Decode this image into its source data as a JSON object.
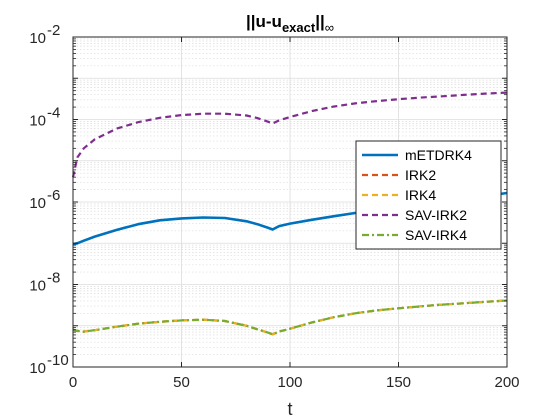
{
  "chart_data": {
    "type": "line",
    "title_parts": {
      "prefix": "||u-u",
      "subscript": "exact",
      "suffix": "||",
      "suffix_sub": "∞"
    },
    "xlabel": "t",
    "ylabel": "",
    "xlim": [
      0,
      200
    ],
    "ylim": [
      1e-10,
      0.01
    ],
    "yscale": "log",
    "grid": true,
    "minor_grid": true,
    "legend_position": "right",
    "x_ticks": [
      0,
      50,
      100,
      150,
      200
    ],
    "x_tick_labels": [
      "0",
      "50",
      "100",
      "150",
      "200"
    ],
    "y_tick_mantissa": [
      "10",
      "10",
      "10",
      "10",
      "10"
    ],
    "y_tick_exponents": [
      "-10",
      "-8",
      "-6",
      "-4",
      "-2"
    ],
    "y_tick_values": [
      1e-10,
      1e-08,
      1e-06,
      0.0001,
      0.01
    ],
    "x": [
      0,
      2,
      5,
      10,
      20,
      30,
      40,
      50,
      60,
      70,
      80,
      85,
      90,
      92,
      95,
      100,
      110,
      120,
      130,
      140,
      150,
      160,
      170,
      180,
      190,
      200
    ],
    "series": [
      {
        "name": "mETDRK4",
        "color": "#0072BD",
        "style": "solid",
        "width": 2.6,
        "values": [
          9.5e-08,
          1e-07,
          1.15e-07,
          1.45e-07,
          2.1e-07,
          2.9e-07,
          3.6e-07,
          4e-07,
          4.2e-07,
          4.1e-07,
          3.4e-07,
          2.9e-07,
          2.35e-07,
          2.15e-07,
          2.6e-07,
          3e-07,
          3.7e-07,
          4.5e-07,
          5.4e-07,
          6.4e-07,
          7.4e-07,
          8.5e-07,
          9.8e-07,
          1.15e-06,
          1.4e-06,
          1.65e-06
        ]
      },
      {
        "name": "IRK2",
        "color": "#D95319",
        "style": "dashed",
        "width": 2.2,
        "values": [
          8e-10,
          7.5e-10,
          7.2e-10,
          7.8e-10,
          9.5e-10,
          1.12e-09,
          1.25e-09,
          1.35e-09,
          1.4e-09,
          1.3e-09,
          1e-09,
          8.2e-10,
          6.8e-10,
          6.2e-10,
          7.2e-10,
          8.5e-10,
          1.2e-09,
          1.6e-09,
          2e-09,
          2.35e-09,
          2.65e-09,
          2.95e-09,
          3.25e-09,
          3.5e-09,
          3.8e-09,
          4.1e-09
        ]
      },
      {
        "name": "IRK4",
        "color": "#EDB120",
        "style": "dashed",
        "width": 2.2,
        "values": [
          8e-10,
          7.5e-10,
          7.2e-10,
          7.8e-10,
          9.5e-10,
          1.12e-09,
          1.25e-09,
          1.35e-09,
          1.4e-09,
          1.3e-09,
          1e-09,
          8.2e-10,
          6.8e-10,
          6.2e-10,
          7.2e-10,
          8.5e-10,
          1.2e-09,
          1.6e-09,
          2e-09,
          2.35e-09,
          2.65e-09,
          2.95e-09,
          3.25e-09,
          3.5e-09,
          3.8e-09,
          4.1e-09
        ]
      },
      {
        "name": "SAV-IRK2",
        "color": "#7E2F8E",
        "style": "dashed",
        "width": 2.2,
        "values": [
          4e-06,
          1.2e-05,
          2e-05,
          3.3e-05,
          6e-05,
          8.6e-05,
          0.00011,
          0.000128,
          0.000138,
          0.000138,
          0.000125,
          0.000108,
          8.8e-05,
          8e-05,
          9.5e-05,
          0.000115,
          0.00016,
          0.000205,
          0.000245,
          0.00028,
          0.00031,
          0.00034,
          0.000365,
          0.000395,
          0.000425,
          0.00045
        ]
      },
      {
        "name": "SAV-IRK4",
        "color": "#77AC30",
        "style": "dashdot",
        "width": 2.2,
        "values": [
          8e-10,
          7.5e-10,
          7.2e-10,
          7.8e-10,
          9.5e-10,
          1.12e-09,
          1.25e-09,
          1.35e-09,
          1.4e-09,
          1.3e-09,
          1e-09,
          8.2e-10,
          6.8e-10,
          6.2e-10,
          7.2e-10,
          8.5e-10,
          1.2e-09,
          1.6e-09,
          2e-09,
          2.35e-09,
          2.65e-09,
          2.95e-09,
          3.25e-09,
          3.5e-09,
          3.8e-09,
          4.1e-09
        ]
      }
    ]
  }
}
